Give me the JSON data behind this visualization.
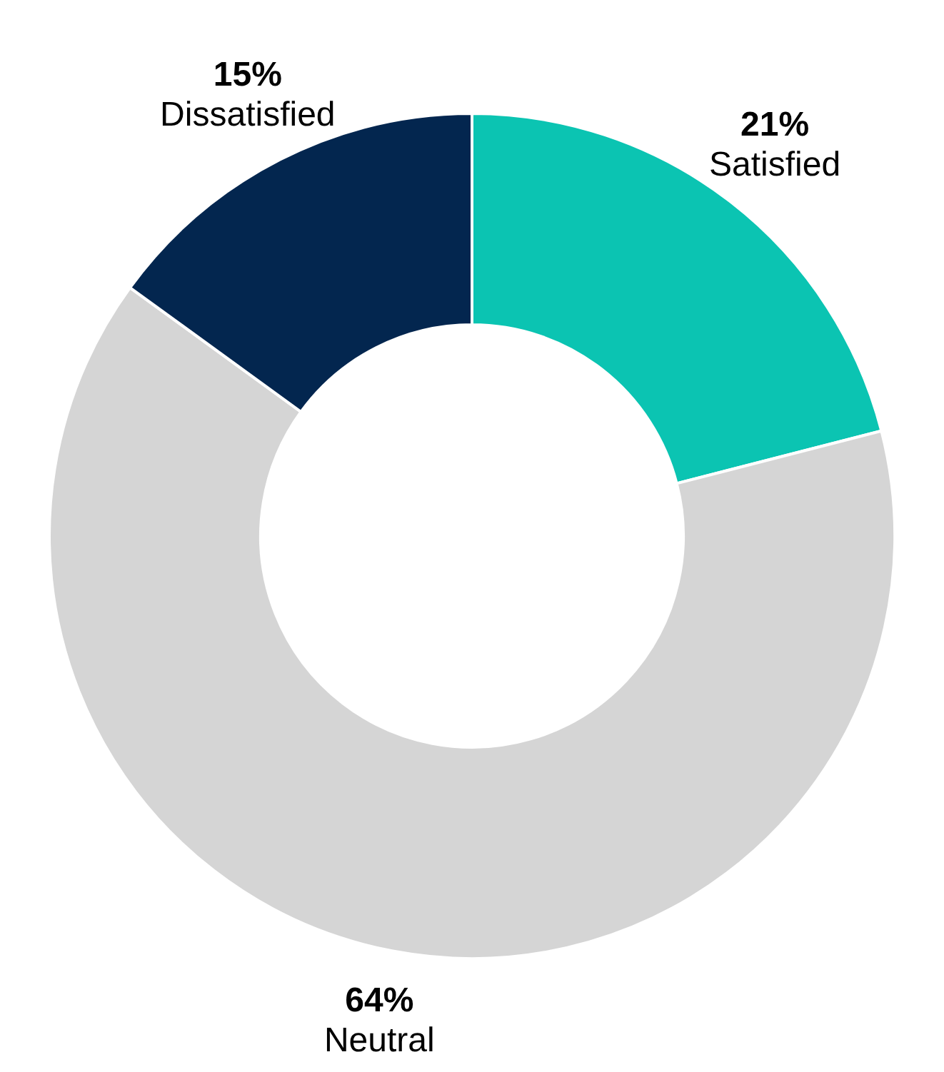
{
  "chart_data": {
    "type": "donut",
    "categories": [
      "Satisfied",
      "Neutral",
      "Dissatisfied"
    ],
    "values": [
      21,
      64,
      15
    ],
    "value_labels": [
      "21%",
      "64%",
      "15%"
    ],
    "colors": [
      "#0bc4b2",
      "#d5d5d5",
      "#03264f"
    ]
  }
}
